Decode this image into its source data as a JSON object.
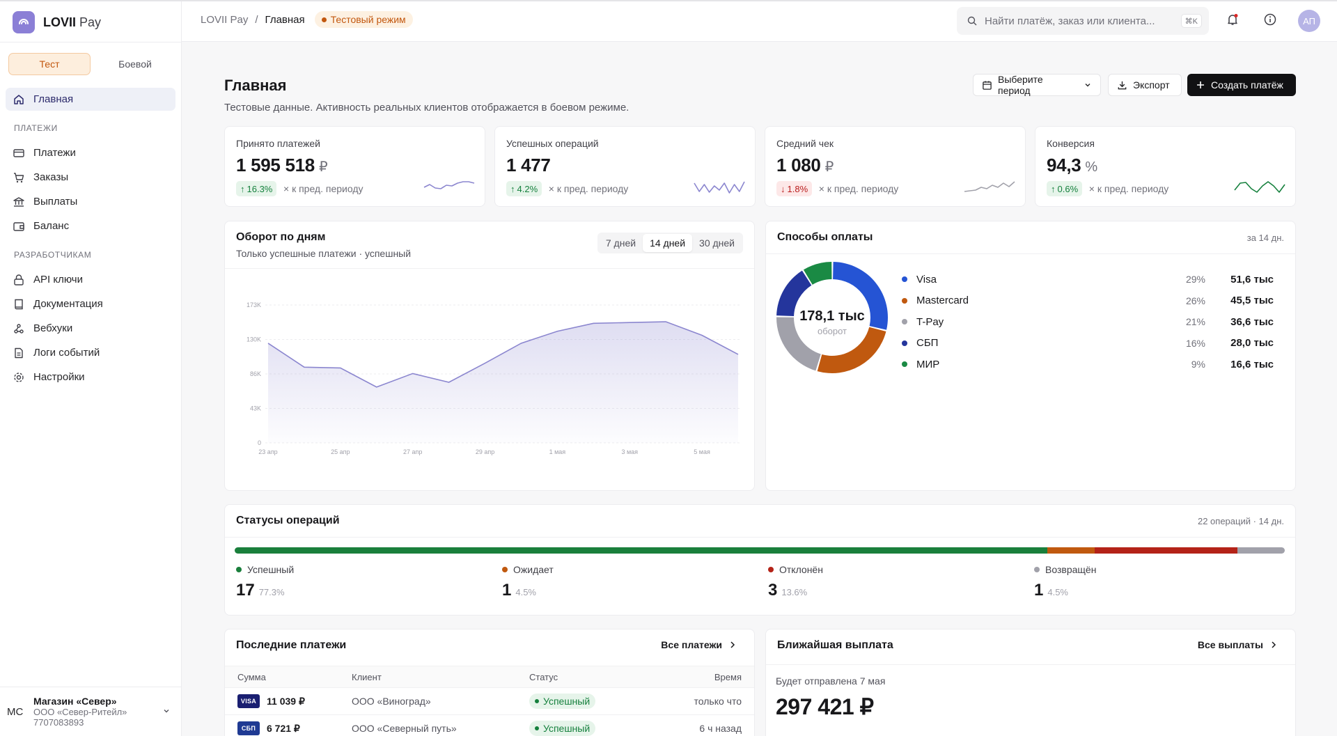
{
  "app": {
    "brand_bold": "LOVII",
    "brand_light": "Pay"
  },
  "mode": {
    "test_label": "Тест",
    "live_label": "Боевой",
    "active": "test"
  },
  "sidebar": {
    "home": "Главная",
    "section_payments": "ПЛАТЕЖИ",
    "payments_items": [
      "Платежи",
      "Заказы",
      "Выплаты",
      "Баланс"
    ],
    "section_dev": "РАЗРАБОТЧИКАМ",
    "dev_items": [
      "API ключи",
      "Документация",
      "Вебхуки",
      "Логи событий",
      "Настройки"
    ],
    "footer": {
      "initials": "МС",
      "shop_name": "Магазин «Север»",
      "company": "ООО «Север-Ритейл»",
      "inn": "7707083893"
    }
  },
  "topbar": {
    "crumb_root": "LOVII Pay",
    "crumb_sep": "/",
    "crumb_current": "Главная",
    "test_badge": "Тестовый режим",
    "search_placeholder": "Найти платёж, заказ или клиента...",
    "search_shortcut": "⌘K",
    "user_initials": "АП"
  },
  "page": {
    "title": "Главная",
    "subtitle": "Тестовые данные. Активность реальных клиентов отображается в боевом режиме.",
    "period_button": "Выберите период",
    "export_button": "Экспорт",
    "create_button": "Создать платёж"
  },
  "kpis": [
    {
      "label": "Принято платежей",
      "value": "1 595 518",
      "unit": "₽",
      "delta": "16.3%",
      "direction": "up",
      "compare": "× к пред. периоду",
      "spark_color": "#8b86cf",
      "spark": [
        0.5,
        0.3,
        0.55,
        0.6,
        0.35,
        0.4,
        0.2,
        0.1,
        0.1,
        0.2
      ]
    },
    {
      "label": "Успешных операций",
      "value": "1 477",
      "unit": "",
      "delta": "4.2%",
      "direction": "up",
      "compare": "× к пред. периоду",
      "spark_color": "#8b86cf",
      "spark": [
        0.2,
        0.8,
        0.3,
        0.85,
        0.4,
        0.7,
        0.2,
        0.9,
        0.3,
        0.8,
        0.1
      ]
    },
    {
      "label": "Средний чек",
      "value": "1 080",
      "unit": "₽",
      "delta": "1.8%",
      "direction": "down",
      "compare": "× к пред. периоду",
      "spark_color": "#a1a1aa",
      "spark": [
        0.8,
        0.75,
        0.7,
        0.5,
        0.6,
        0.35,
        0.5,
        0.2,
        0.45,
        0.1
      ]
    },
    {
      "label": "Конверсия",
      "value": "94,3",
      "unit": "%",
      "delta": "0.6%",
      "direction": "up",
      "compare": "× к пред. периоду",
      "spark_color": "#15803d",
      "spark": [
        0.7,
        0.2,
        0.15,
        0.6,
        0.85,
        0.4,
        0.1,
        0.4,
        0.85,
        0.3
      ]
    }
  ],
  "turnover": {
    "title": "Оборот по дням",
    "subtitle": "Только успешные платежи · успешный",
    "ranges": [
      "7 дней",
      "14 дней",
      "30 дней"
    ],
    "active_range": "14 дней"
  },
  "chart_data": {
    "type": "area",
    "x": [
      "23 апр",
      "24 апр",
      "25 апр",
      "26 апр",
      "27 апр",
      "28 апр",
      "29 апр",
      "30 апр",
      "1 мая",
      "2 мая",
      "3 мая",
      "4 мая",
      "5 мая",
      "6 мая"
    ],
    "x_tick_labels": [
      "23 апр",
      "25 апр",
      "27 апр",
      "29 апр",
      "1 мая",
      "3 мая",
      "5 мая"
    ],
    "y_tick_labels": [
      "173K",
      "130K",
      "86K",
      "43K",
      "0"
    ],
    "ylim": [
      0,
      173000
    ],
    "series": [
      {
        "values": [
          125000,
          95000,
          94000,
          70000,
          87000,
          76000,
          100000,
          125000,
          140000,
          150000,
          151000,
          152000,
          135000,
          111000
        ]
      }
    ],
    "grid": true,
    "color": "#8b86cf"
  },
  "payment_methods": {
    "title": "Способы оплаты",
    "meta": "за 14 дн.",
    "center_value": "178,1 тыс",
    "center_label": "оборот",
    "items": [
      {
        "name": "Visa",
        "pct": "29%",
        "value": "51,6 тыс",
        "share": 29,
        "color": "#2554d4"
      },
      {
        "name": "Mastercard",
        "pct": "26%",
        "value": "45,5 тыс",
        "share": 26,
        "color": "#c0590f"
      },
      {
        "name": "T-Pay",
        "pct": "21%",
        "value": "36,6 тыс",
        "share": 21,
        "color": "#a1a1aa"
      },
      {
        "name": "СБП",
        "pct": "16%",
        "value": "28,0 тыс",
        "share": 16,
        "color": "#24359c"
      },
      {
        "name": "МИР",
        "pct": "9%",
        "value": "16,6 тыс",
        "share": 9,
        "color": "#1a8a44"
      }
    ]
  },
  "statuses": {
    "title": "Статусы операций",
    "meta": "22 операций · 14 дн.",
    "items": [
      {
        "label": "Успешный",
        "count": "17",
        "pct": "77.3%",
        "share": 77.3,
        "color": "#1a7f3c"
      },
      {
        "label": "Ожидает",
        "count": "1",
        "pct": "4.5%",
        "share": 4.5,
        "color": "#c0590f"
      },
      {
        "label": "Отклонён",
        "count": "3",
        "pct": "13.6%",
        "share": 13.6,
        "color": "#b42318"
      },
      {
        "label": "Возвращён",
        "count": "1",
        "pct": "4.5%",
        "share": 4.5,
        "color": "#a1a1aa"
      }
    ]
  },
  "recent": {
    "title": "Последние платежи",
    "all_link": "Все платежи",
    "columns": [
      "Сумма",
      "Клиент",
      "Статус",
      "Время"
    ],
    "rows": [
      {
        "chip": "VISA",
        "amount": "11 039 ₽",
        "client": "ООО «Виноград»",
        "status": "Успешный",
        "time": "только что"
      },
      {
        "chip": "СБП",
        "amount": "6 721 ₽",
        "client": "ООО «Северный путь»",
        "status": "Успешный",
        "time": "6 ч назад"
      }
    ]
  },
  "payout": {
    "title": "Ближайшая выплата",
    "all_link": "Все выплаты",
    "subtitle": "Будет отправлена 7 мая",
    "amount": "297 421 ₽"
  }
}
